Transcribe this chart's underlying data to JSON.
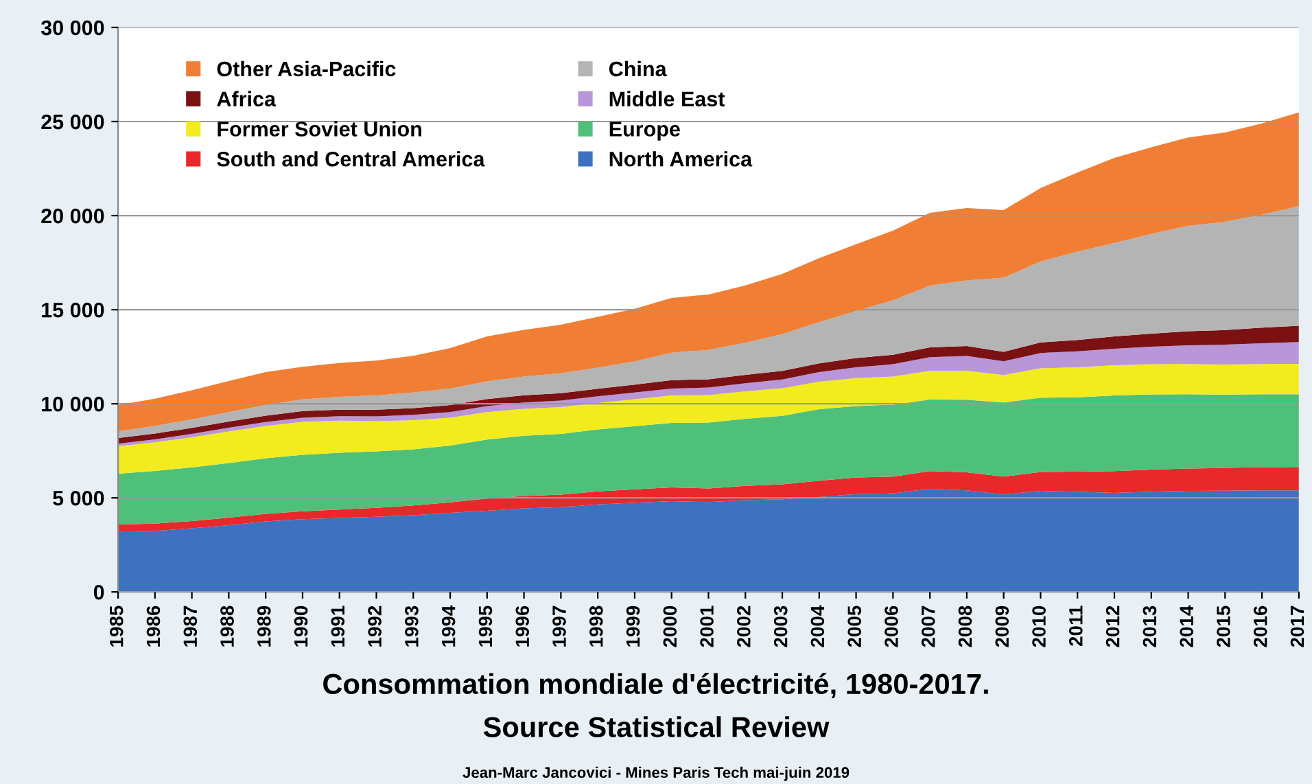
{
  "chart_data": {
    "type": "area",
    "stacked": true,
    "title": "Consommation mondiale d'électricité, 1980-2017.",
    "subtitle": "Source Statistical Review",
    "annotations": [
      "Jean-Marc Jancovici - Mines Paris Tech mai-juin 2019"
    ],
    "categories": [
      "1985",
      "1986",
      "1987",
      "1988",
      "1989",
      "1990",
      "1991",
      "1992",
      "1993",
      "1994",
      "1995",
      "1996",
      "1997",
      "1998",
      "1999",
      "2000",
      "2001",
      "2002",
      "2003",
      "2004",
      "2005",
      "2006",
      "2007",
      "2008",
      "2009",
      "2010",
      "2011",
      "2012",
      "2013",
      "2014",
      "2015",
      "2016",
      "2017"
    ],
    "ylim": [
      0,
      30000
    ],
    "yticks": [
      0,
      {
        "value": 5000,
        "label": "5 000"
      },
      {
        "value": 10000,
        "label": "10 000"
      },
      {
        "value": 15000,
        "label": "15 000"
      },
      {
        "value": 20000,
        "label": "20 000"
      },
      {
        "value": 25000,
        "label": "25 000"
      },
      {
        "value": 30000,
        "label": "30 000"
      }
    ],
    "grid": "y",
    "legend": "top left",
    "series": [
      {
        "name": "North America",
        "color": "#3e72c0",
        "values": [
          3210,
          3250,
          3380,
          3550,
          3750,
          3870,
          3930,
          3990,
          4080,
          4200,
          4310,
          4440,
          4500,
          4650,
          4740,
          4820,
          4780,
          4880,
          4920,
          5040,
          5200,
          5230,
          5480,
          5400,
          5180,
          5370,
          5330,
          5260,
          5330,
          5370,
          5380,
          5400,
          5400
        ]
      },
      {
        "name": "South and Central America",
        "color": "#e8282a",
        "values": [
          370,
          380,
          390,
          400,
          400,
          420,
          450,
          480,
          520,
          560,
          650,
          660,
          670,
          690,
          710,
          730,
          720,
          760,
          800,
          870,
          880,
          900,
          940,
          960,
          950,
          1000,
          1060,
          1160,
          1170,
          1190,
          1210,
          1230,
          1240
        ]
      },
      {
        "name": "Europe",
        "color": "#4fc07a",
        "values": [
          2700,
          2800,
          2850,
          2900,
          2950,
          3000,
          3020,
          3000,
          2980,
          3020,
          3140,
          3200,
          3230,
          3300,
          3360,
          3430,
          3500,
          3560,
          3640,
          3800,
          3800,
          3820,
          3800,
          3850,
          3940,
          3950,
          3950,
          4020,
          4000,
          3950,
          3900,
          3880,
          3870
        ]
      },
      {
        "name": "Former Soviet Union",
        "color": "#f2ec1e",
        "values": [
          1460,
          1520,
          1600,
          1680,
          1720,
          1750,
          1700,
          1600,
          1550,
          1480,
          1460,
          1430,
          1420,
          1400,
          1430,
          1460,
          1460,
          1460,
          1470,
          1460,
          1480,
          1500,
          1530,
          1540,
          1460,
          1560,
          1600,
          1610,
          1600,
          1600,
          1590,
          1600,
          1610
        ]
      },
      {
        "name": "Middle East",
        "color": "#b996d8",
        "values": [
          140,
          160,
          180,
          200,
          210,
          220,
          240,
          260,
          280,
          300,
          320,
          340,
          350,
          360,
          360,
          370,
          400,
          430,
          460,
          510,
          580,
          650,
          730,
          790,
          730,
          820,
          850,
          870,
          930,
          1000,
          1060,
          1110,
          1160
        ]
      },
      {
        "name": "Africa",
        "color": "#7b1113",
        "values": [
          300,
          310,
          320,
          330,
          340,
          350,
          350,
          360,
          360,
          370,
          370,
          380,
          390,
          400,
          420,
          440,
          440,
          450,
          460,
          470,
          490,
          500,
          520,
          530,
          500,
          560,
          600,
          660,
          700,
          740,
          780,
          830,
          870
        ]
      },
      {
        "name": "China",
        "color": "#b4b4b4",
        "values": [
          360,
          400,
          450,
          500,
          560,
          620,
          680,
          750,
          830,
          880,
          940,
          1000,
          1060,
          1120,
          1230,
          1460,
          1560,
          1700,
          1950,
          2190,
          2500,
          2900,
          3280,
          3480,
          3940,
          4300,
          4700,
          4960,
          5300,
          5600,
          5750,
          6000,
          6350
        ]
      },
      {
        "name": "Other Asia-Pacific",
        "color": "#f07f35",
        "values": [
          1390,
          1450,
          1550,
          1650,
          1750,
          1740,
          1800,
          1850,
          1950,
          2150,
          2390,
          2480,
          2580,
          2700,
          2800,
          2910,
          2950,
          3050,
          3200,
          3400,
          3550,
          3700,
          3870,
          3850,
          3590,
          3900,
          4200,
          4530,
          4600,
          4700,
          4750,
          4850,
          4980
        ]
      }
    ]
  }
}
